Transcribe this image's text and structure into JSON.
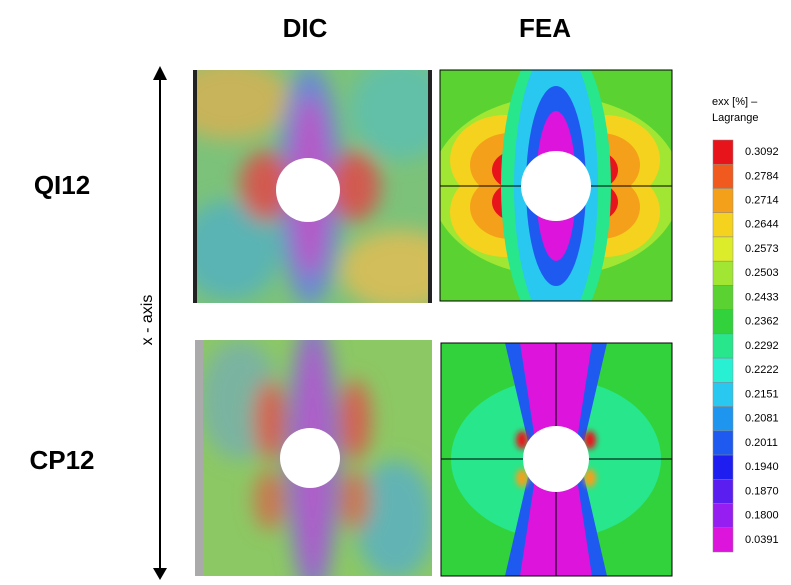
{
  "columns": [
    "DIC",
    "FEA"
  ],
  "rows": [
    "QI12",
    "CP12"
  ],
  "axis_label": "x - axis",
  "legend": {
    "title": [
      "exx [%] –",
      "Lagrange"
    ],
    "entries": [
      {
        "label": "0.3092",
        "color": "#e8141c"
      },
      {
        "label": "0.2784",
        "color": "#f05a1e"
      },
      {
        "label": "0.2714",
        "color": "#f5a01a"
      },
      {
        "label": "0.2644",
        "color": "#f5d21e"
      },
      {
        "label": "0.2573",
        "color": "#dcec2a"
      },
      {
        "label": "0.2503",
        "color": "#a0e632"
      },
      {
        "label": "0.2433",
        "color": "#5ad232"
      },
      {
        "label": "0.2362",
        "color": "#32d23c"
      },
      {
        "label": "0.2292",
        "color": "#28e68c"
      },
      {
        "label": "0.2222",
        "color": "#28f0d2"
      },
      {
        "label": "0.2151",
        "color": "#28c8f0"
      },
      {
        "label": "0.2081",
        "color": "#1e96f0"
      },
      {
        "label": "0.2011",
        "color": "#1e5af0"
      },
      {
        "label": "0.1940",
        "color": "#1e1ef0"
      },
      {
        "label": "0.1870",
        "color": "#5a1ef0"
      },
      {
        "label": "0.1800",
        "color": "#961ef0"
      },
      {
        "label": "0.0391",
        "color": "#dc14dc"
      }
    ]
  }
}
